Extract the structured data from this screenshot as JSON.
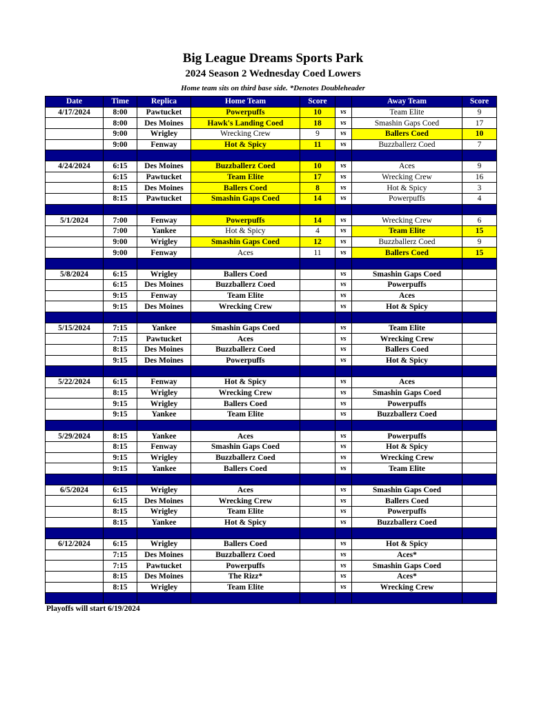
{
  "header": {
    "title": "Big League Dreams Sports Park",
    "subtitle": "2024 Season 2 Wednesday Coed Lowers",
    "note": "Home team sits on third base side.  *Denotes Doubleheader"
  },
  "colors": {
    "header_bg": "#00008b",
    "winner_highlight": "#ffff00"
  },
  "columns": [
    "Date",
    "Time",
    "Replica",
    "Home Team",
    "Score",
    "",
    "Away Team",
    "Score"
  ],
  "vs_label": "vs",
  "blocks": [
    {
      "date": "4/17/2024",
      "games": [
        {
          "time": "8:00",
          "replica": "Pawtucket",
          "home": "Powerpuffs",
          "home_score": "10",
          "away": "Team Elite",
          "away_score": "9",
          "winner": "home"
        },
        {
          "time": "8:00",
          "replica": "Des Moines",
          "home": "Hawk's Landing Coed",
          "home_score": "18",
          "away": "Smashin Gaps Coed",
          "away_score": "17",
          "winner": "home"
        },
        {
          "time": "9:00",
          "replica": "Wrigley",
          "home": "Wrecking Crew",
          "home_score": "9",
          "away": "Ballers Coed",
          "away_score": "10",
          "winner": "away"
        },
        {
          "time": "9:00",
          "replica": "Fenway",
          "home": "Hot & Spicy",
          "home_score": "11",
          "away": "Buzzballerz Coed",
          "away_score": "7",
          "winner": "home"
        }
      ]
    },
    {
      "date": "4/24/2024",
      "games": [
        {
          "time": "6:15",
          "replica": "Des Moines",
          "home": "Buzzballerz Coed",
          "home_score": "10",
          "away": "Aces",
          "away_score": "9",
          "winner": "home"
        },
        {
          "time": "6:15",
          "replica": "Pawtucket",
          "home": "Team Elite",
          "home_score": "17",
          "away": "Wrecking Crew",
          "away_score": "16",
          "winner": "home"
        },
        {
          "time": "8:15",
          "replica": "Des Moines",
          "home": "Ballers Coed",
          "home_score": "8",
          "away": "Hot & Spicy",
          "away_score": "3",
          "winner": "home"
        },
        {
          "time": "8:15",
          "replica": "Pawtucket",
          "home": "Smashin Gaps Coed",
          "home_score": "14",
          "away": "Powerpuffs",
          "away_score": "4",
          "winner": "home"
        }
      ]
    },
    {
      "date": "5/1/2024",
      "games": [
        {
          "time": "7:00",
          "replica": "Fenway",
          "home": "Powerpuffs",
          "home_score": "14",
          "away": "Wrecking Crew",
          "away_score": "6",
          "winner": "home"
        },
        {
          "time": "7:00",
          "replica": "Yankee",
          "home": "Hot & Spicy",
          "home_score": "4",
          "away": "Team Elite",
          "away_score": "15",
          "winner": "away"
        },
        {
          "time": "9:00",
          "replica": "Wrigley",
          "home": "Smashin Gaps Coed",
          "home_score": "12",
          "away": "Buzzballerz Coed",
          "away_score": "9",
          "winner": "home"
        },
        {
          "time": "9:00",
          "replica": "Fenway",
          "home": "Aces",
          "home_score": "11",
          "away": "Ballers Coed",
          "away_score": "15",
          "winner": "away"
        }
      ]
    },
    {
      "date": "5/8/2024",
      "games": [
        {
          "time": "6:15",
          "replica": "Wrigley",
          "home": "Ballers Coed",
          "home_score": "",
          "away": "Smashin Gaps Coed",
          "away_score": ""
        },
        {
          "time": "6:15",
          "replica": "Des Moines",
          "home": "Buzzballerz Coed",
          "home_score": "",
          "away": "Powerpuffs",
          "away_score": ""
        },
        {
          "time": "9:15",
          "replica": "Fenway",
          "home": "Team Elite",
          "home_score": "",
          "away": "Aces",
          "away_score": ""
        },
        {
          "time": "9:15",
          "replica": "Des Moines",
          "home": "Wrecking Crew",
          "home_score": "",
          "away": "Hot & Spicy",
          "away_score": ""
        }
      ]
    },
    {
      "date": "5/15/2024",
      "games": [
        {
          "time": "7:15",
          "replica": "Yankee",
          "home": "Smashin Gaps Coed",
          "home_score": "",
          "away": "Team Elite",
          "away_score": ""
        },
        {
          "time": "7:15",
          "replica": "Pawtucket",
          "home": "Aces",
          "home_score": "",
          "away": "Wrecking Crew",
          "away_score": ""
        },
        {
          "time": "8:15",
          "replica": "Des Moines",
          "home": "Buzzballerz Coed",
          "home_score": "",
          "away": "Ballers Coed",
          "away_score": ""
        },
        {
          "time": "9:15",
          "replica": "Des Moines",
          "home": "Powerpuffs",
          "home_score": "",
          "away": "Hot & Spicy",
          "away_score": ""
        }
      ]
    },
    {
      "date": "5/22/2024",
      "games": [
        {
          "time": "6:15",
          "replica": "Fenway",
          "home": "Hot & Spicy",
          "home_score": "",
          "away": "Aces",
          "away_score": ""
        },
        {
          "time": "8:15",
          "replica": "Wrigley",
          "home": "Wrecking Crew",
          "home_score": "",
          "away": "Smashin Gaps Coed",
          "away_score": ""
        },
        {
          "time": "9:15",
          "replica": "Wrigley",
          "home": "Ballers Coed",
          "home_score": "",
          "away": "Powerpuffs",
          "away_score": ""
        },
        {
          "time": "9:15",
          "replica": "Yankee",
          "home": "Team Elite",
          "home_score": "",
          "away": "Buzzballerz Coed",
          "away_score": ""
        }
      ]
    },
    {
      "date": "5/29/2024",
      "games": [
        {
          "time": "8:15",
          "replica": "Yankee",
          "home": "Aces",
          "home_score": "",
          "away": "Powerpuffs",
          "away_score": ""
        },
        {
          "time": "8:15",
          "replica": "Fenway",
          "home": "Smashin Gaps Coed",
          "home_score": "",
          "away": "Hot & Spicy",
          "away_score": ""
        },
        {
          "time": "9:15",
          "replica": "Wrigley",
          "home": "Buzzballerz Coed",
          "home_score": "",
          "away": "Wrecking Crew",
          "away_score": ""
        },
        {
          "time": "9:15",
          "replica": "Yankee",
          "home": "Ballers Coed",
          "home_score": "",
          "away": "Team Elite",
          "away_score": ""
        }
      ]
    },
    {
      "date": "6/5/2024",
      "games": [
        {
          "time": "6:15",
          "replica": "Wrigley",
          "home": "Aces",
          "home_score": "",
          "away": "Smashin Gaps Coed",
          "away_score": ""
        },
        {
          "time": "6:15",
          "replica": "Des Moines",
          "home": "Wrecking Crew",
          "home_score": "",
          "away": "Ballers Coed",
          "away_score": ""
        },
        {
          "time": "8:15",
          "replica": "Wrigley",
          "home": "Team Elite",
          "home_score": "",
          "away": "Powerpuffs",
          "away_score": ""
        },
        {
          "time": "8:15",
          "replica": "Yankee",
          "home": "Hot & Spicy",
          "home_score": "",
          "away": "Buzzballerz Coed",
          "away_score": ""
        }
      ]
    },
    {
      "date": "6/12/2024",
      "games": [
        {
          "time": "6:15",
          "replica": "Wrigley",
          "home": "Ballers Coed",
          "home_score": "",
          "away": "Hot & Spicy",
          "away_score": ""
        },
        {
          "time": "7:15",
          "replica": "Des Moines",
          "home": "Buzzballerz Coed",
          "home_score": "",
          "away": "Aces*",
          "away_score": ""
        },
        {
          "time": "7:15",
          "replica": "Pawtucket",
          "home": "Powerpuffs",
          "home_score": "",
          "away": "Smashin Gaps Coed",
          "away_score": ""
        },
        {
          "time": "8:15",
          "replica": "Des Moines",
          "home": "The Rizz*",
          "home_score": "",
          "away": "Aces*",
          "away_score": ""
        },
        {
          "time": "8:15",
          "replica": "Wrigley",
          "home": "Team Elite",
          "home_score": "",
          "away": "Wrecking Crew",
          "away_score": ""
        }
      ]
    }
  ],
  "footer": "Playoffs will start 6/19/2024"
}
